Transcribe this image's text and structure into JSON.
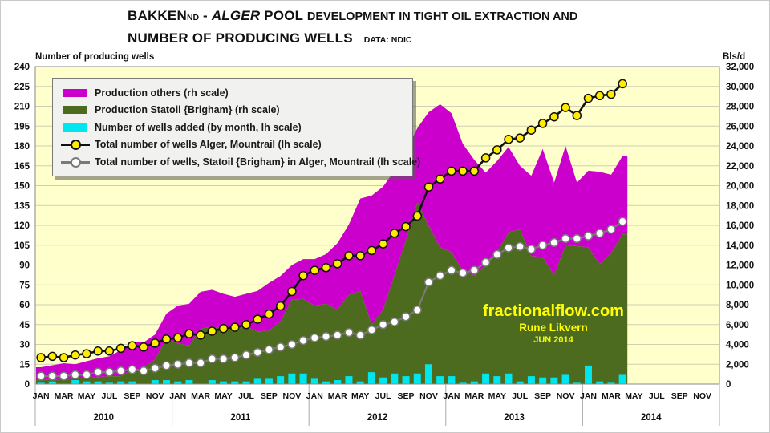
{
  "title": {
    "part1": "BAKKEN",
    "part1_sub": "ND",
    "part2": " - ",
    "part3": "ALGER",
    "part4": " POOL ",
    "part5": "DEVELOPMENT IN TIGHT OIL EXTRACTION AND",
    "line2": "NUMBER OF PRODUCING WELLS",
    "source": "DATA: NDIC"
  },
  "watermark": {
    "site": "fractionalflow.com",
    "author": "Rune Likvern",
    "date": "JUN 2014"
  },
  "legend": [
    {
      "label": "Production others (rh scale)",
      "swatch": "area",
      "color": "#cc00cc"
    },
    {
      "label": "Production Statoil {Brigham} (rh scale)",
      "swatch": "area",
      "color": "#4d6b1f"
    },
    {
      "label": "Number of wells added (by month, lh scale)",
      "swatch": "area",
      "color": "#00e6ee"
    },
    {
      "label": "Total number of wells Alger, Mountrail (lh scale)",
      "swatch": "line",
      "line_color": "#111111",
      "marker_fill": "#ffeb00",
      "marker_stroke": "#111111"
    },
    {
      "label": "Total number of wells, Statoil {Brigham} in Alger, Mountrail (lh scale)",
      "swatch": "line",
      "line_color": "#7a7a7a",
      "marker_fill": "#ffffff",
      "marker_stroke": "#7a7a7a"
    }
  ],
  "axes": {
    "left": {
      "label": "Number of producing wells",
      "ticks": [
        0,
        15,
        30,
        45,
        60,
        75,
        90,
        105,
        120,
        135,
        150,
        165,
        180,
        195,
        210,
        225,
        240
      ]
    },
    "right": {
      "label": "Bls/d",
      "ticks": [
        0,
        2000,
        4000,
        6000,
        8000,
        10000,
        12000,
        14000,
        16000,
        18000,
        20000,
        22000,
        24000,
        26000,
        28000,
        30000,
        32000
      ]
    },
    "x": {
      "month_labels": [
        "JAN",
        "MAR",
        "MAY",
        "JUL",
        "SEP",
        "NOV"
      ],
      "years": [
        "2010",
        "2011",
        "2012",
        "2013",
        "2014"
      ]
    }
  },
  "chart_data": {
    "type": "combo: stacked area (production, rh axis) + monthly bars (wells added, lh axis) + two marker lines (well counts, lh axis)",
    "x_start": "JAN 2010",
    "x_end_of_data": "APR 2014",
    "x_axis_extends_to": "DEC 2014",
    "months_with_data": 52,
    "left_ylim": [
      0,
      240
    ],
    "right_ylim": [
      0,
      32000
    ],
    "grid": "horizontal gridlines every 15 wells / 2,000 Bls/d",
    "legend_position": "top-left inside plot",
    "series": [
      {
        "name": "Production Statoil {Brigham} (rh scale)",
        "type": "area",
        "axis": "right",
        "color": "#4d6b1f",
        "values": [
          400,
          450,
          500,
          550,
          600,
          700,
          800,
          800,
          1450,
          1600,
          2500,
          4600,
          4100,
          3900,
          5600,
          5800,
          5600,
          5500,
          5800,
          5300,
          5400,
          6300,
          8500,
          8600,
          7900,
          8100,
          7500,
          9000,
          9400,
          6000,
          7500,
          11000,
          14500,
          18300,
          16000,
          13800,
          13300,
          11400,
          10900,
          12000,
          13300,
          15300,
          15600,
          12900,
          12800,
          11000,
          14000,
          13900,
          13800,
          12100,
          13200,
          15100
        ]
      },
      {
        "name": "Production others (rh scale)",
        "type": "area",
        "axis": "right",
        "stacked_on": "Production Statoil {Brigham} (rh scale)",
        "color": "#cc00cc",
        "values": [
          1300,
          1450,
          1600,
          1450,
          1700,
          1900,
          2000,
          2600,
          2850,
          2600,
          2500,
          2500,
          3800,
          4200,
          3700,
          3700,
          3500,
          3300,
          3300,
          4100,
          4800,
          4600,
          3500,
          4000,
          4700,
          5000,
          6700,
          7100,
          9300,
          13000,
          12400,
          10500,
          9000,
          7500,
          11400,
          14400,
          14000,
          12800,
          11700,
          9300,
          9200,
          8600,
          6400,
          8100,
          10900,
          9300,
          10000,
          6400,
          7700,
          9300,
          7900,
          7900
        ]
      },
      {
        "name": "Number of wells added (by month, lh scale)",
        "type": "bar",
        "axis": "left",
        "color": "#00e6ee",
        "values": [
          1,
          2,
          0,
          3,
          2,
          2,
          1,
          2,
          2,
          0,
          3,
          3,
          2,
          3,
          0,
          3,
          2,
          2,
          2,
          4,
          4,
          6,
          8,
          8,
          4,
          2,
          3,
          6,
          2,
          9,
          5,
          8,
          6,
          8,
          15,
          6,
          6,
          1,
          2,
          8,
          6,
          8,
          2,
          6,
          5,
          5,
          7,
          1,
          14,
          2,
          1,
          7
        ]
      },
      {
        "name": "Total number of wells Alger, Mountrail (lh scale)",
        "type": "line",
        "axis": "left",
        "line_color": "#111111",
        "marker_fill": "#ffeb00",
        "marker_stroke": "#111111",
        "values": [
          20,
          21,
          20,
          22,
          23,
          25,
          25,
          27,
          29,
          28,
          31,
          34,
          35,
          38,
          37,
          40,
          42,
          43,
          45,
          49,
          53,
          59,
          70,
          82,
          86,
          88,
          91,
          97,
          97,
          101,
          106,
          114,
          119,
          127,
          149,
          155,
          161,
          161,
          161,
          171,
          177,
          185,
          186,
          192,
          197,
          202,
          209,
          203,
          216,
          218,
          219,
          227
        ]
      },
      {
        "name": "Total number of wells, Statoil {Brigham} in Alger, Mountrail (lh scale)",
        "type": "line",
        "axis": "left",
        "line_color": "#7a7a7a",
        "marker_fill": "#ffffff",
        "marker_stroke": "#7a7a7a",
        "values": [
          6,
          6,
          6,
          7,
          7,
          9,
          9,
          10,
          11,
          10,
          12,
          14,
          15,
          16,
          16,
          19,
          19,
          20,
          22,
          24,
          26,
          28,
          30,
          33,
          35,
          36,
          37,
          39,
          37,
          41,
          45,
          47,
          51,
          56,
          77,
          82,
          86,
          84,
          86,
          92,
          98,
          103,
          104,
          102,
          105,
          107,
          110,
          110,
          112,
          114,
          117,
          123
        ]
      }
    ],
    "colors": {
      "plot_bg": "#ffffcc",
      "gridline": "#cfcfb2",
      "plot_border": "#8a8a8a"
    }
  }
}
